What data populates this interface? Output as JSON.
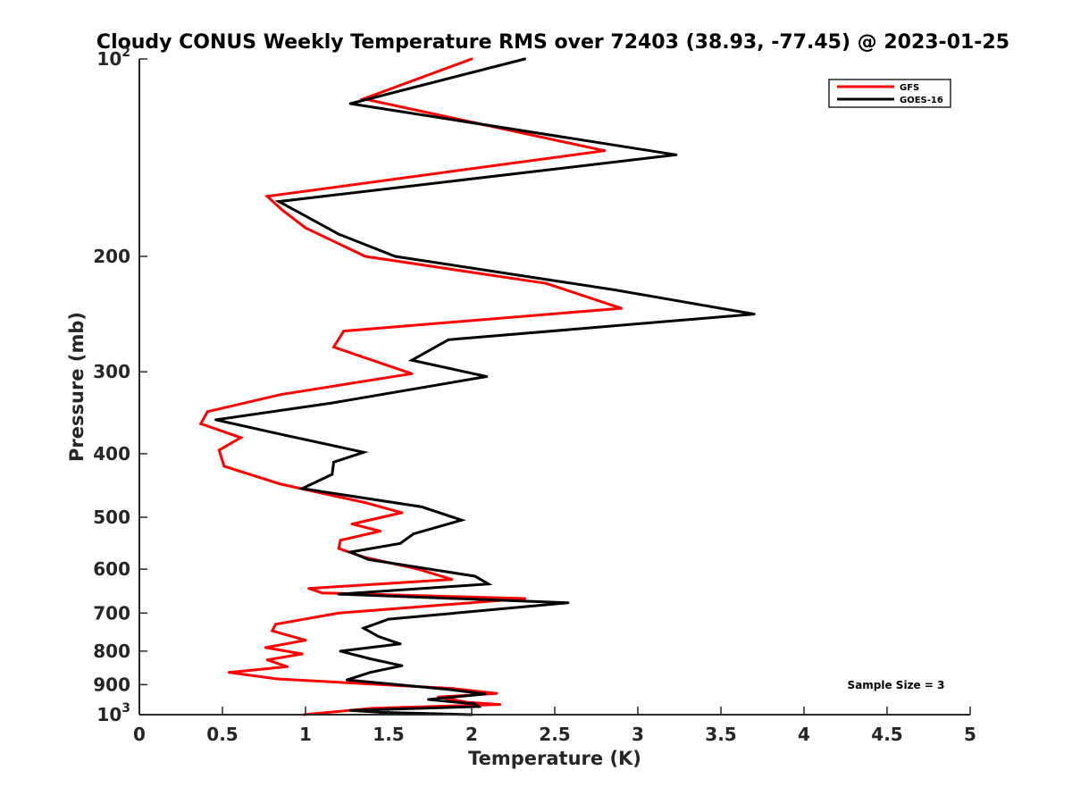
{
  "chart_data": {
    "type": "line",
    "title": "Cloudy CONUS Weekly Temperature RMS over 72403 (38.93, -77.45) @ 2023-01-25",
    "xlabel": "Temperature (K)",
    "ylabel": "Pressure (mb)",
    "xlim": [
      0,
      5
    ],
    "ylim": [
      1000,
      100
    ],
    "y_scale": "log",
    "x_ticks": [
      {
        "v": 0,
        "label": "0"
      },
      {
        "v": 0.5,
        "label": "0.5"
      },
      {
        "v": 1,
        "label": "1"
      },
      {
        "v": 1.5,
        "label": "1.5"
      },
      {
        "v": 2,
        "label": "2"
      },
      {
        "v": 2.5,
        "label": "2.5"
      },
      {
        "v": 3,
        "label": "3"
      },
      {
        "v": 3.5,
        "label": "3.5"
      },
      {
        "v": 4,
        "label": "4"
      },
      {
        "v": 4.5,
        "label": "4.5"
      },
      {
        "v": 5,
        "label": "5"
      }
    ],
    "y_ticks": [
      {
        "v": 100,
        "base": "10",
        "exp": "2"
      },
      {
        "v": 200,
        "label": "200"
      },
      {
        "v": 300,
        "label": "300"
      },
      {
        "v": 400,
        "label": "400"
      },
      {
        "v": 500,
        "label": "500"
      },
      {
        "v": 600,
        "label": "600"
      },
      {
        "v": 700,
        "label": "700"
      },
      {
        "v": 800,
        "label": "800"
      },
      {
        "v": 900,
        "label": "900"
      },
      {
        "v": 1000,
        "base": "10",
        "exp": "3"
      }
    ],
    "grid": false,
    "legend": {
      "position": "top-right"
    },
    "annotation": "Sample Size = 3",
    "series": [
      {
        "name": "GFS",
        "color": "#ff0000",
        "points": [
          [
            2.0,
            100
          ],
          [
            1.35,
            115
          ],
          [
            2.8,
            138
          ],
          [
            0.77,
            162
          ],
          [
            0.86,
            170
          ],
          [
            1.0,
            181
          ],
          [
            1.36,
            200
          ],
          [
            2.45,
            220
          ],
          [
            2.9,
            240
          ],
          [
            1.23,
            260
          ],
          [
            1.17,
            275
          ],
          [
            1.64,
            302
          ],
          [
            0.85,
            325
          ],
          [
            0.41,
            345
          ],
          [
            0.37,
            360
          ],
          [
            0.61,
            378
          ],
          [
            0.48,
            395
          ],
          [
            0.51,
            418
          ],
          [
            0.85,
            445
          ],
          [
            1.36,
            475
          ],
          [
            1.58,
            492
          ],
          [
            1.28,
            512
          ],
          [
            1.45,
            525
          ],
          [
            1.21,
            542
          ],
          [
            1.2,
            558
          ],
          [
            1.35,
            575
          ],
          [
            1.68,
            600
          ],
          [
            1.88,
            622
          ],
          [
            1.02,
            642
          ],
          [
            1.1,
            652
          ],
          [
            2.32,
            665
          ],
          [
            1.2,
            700
          ],
          [
            0.82,
            728
          ],
          [
            0.8,
            745
          ],
          [
            1.0,
            770
          ],
          [
            0.76,
            790
          ],
          [
            0.98,
            808
          ],
          [
            0.77,
            825
          ],
          [
            0.89,
            845
          ],
          [
            0.54,
            862
          ],
          [
            0.83,
            882
          ],
          [
            1.88,
            912
          ],
          [
            2.15,
            928
          ],
          [
            1.8,
            940
          ],
          [
            1.98,
            958
          ],
          [
            2.17,
            965
          ],
          [
            1.4,
            978
          ],
          [
            0.99,
            1000
          ]
        ]
      },
      {
        "name": "GOES-16",
        "color": "#000000",
        "points": [
          [
            2.32,
            100
          ],
          [
            1.27,
            117
          ],
          [
            3.23,
            140
          ],
          [
            0.84,
            165
          ],
          [
            1.2,
            185
          ],
          [
            1.54,
            200
          ],
          [
            2.86,
            225
          ],
          [
            3.7,
            245
          ],
          [
            1.86,
            268
          ],
          [
            1.64,
            288
          ],
          [
            2.09,
            305
          ],
          [
            1.15,
            335
          ],
          [
            0.46,
            355
          ],
          [
            0.88,
            375
          ],
          [
            1.35,
            398
          ],
          [
            1.17,
            412
          ],
          [
            1.16,
            430
          ],
          [
            0.98,
            452
          ],
          [
            1.7,
            482
          ],
          [
            1.94,
            505
          ],
          [
            1.65,
            530
          ],
          [
            1.57,
            548
          ],
          [
            1.27,
            565
          ],
          [
            1.38,
            580
          ],
          [
            2.02,
            615
          ],
          [
            2.1,
            632
          ],
          [
            1.2,
            655
          ],
          [
            2.58,
            675
          ],
          [
            1.5,
            715
          ],
          [
            1.35,
            738
          ],
          [
            1.44,
            760
          ],
          [
            1.57,
            780
          ],
          [
            1.21,
            800
          ],
          [
            1.39,
            822
          ],
          [
            1.58,
            842
          ],
          [
            1.39,
            862
          ],
          [
            1.25,
            885
          ],
          [
            1.86,
            915
          ],
          [
            2.08,
            930
          ],
          [
            1.74,
            948
          ],
          [
            2.02,
            963
          ],
          [
            2.04,
            972
          ],
          [
            1.27,
            985
          ],
          [
            1.45,
            992
          ],
          [
            2.0,
            1000
          ]
        ]
      }
    ]
  }
}
